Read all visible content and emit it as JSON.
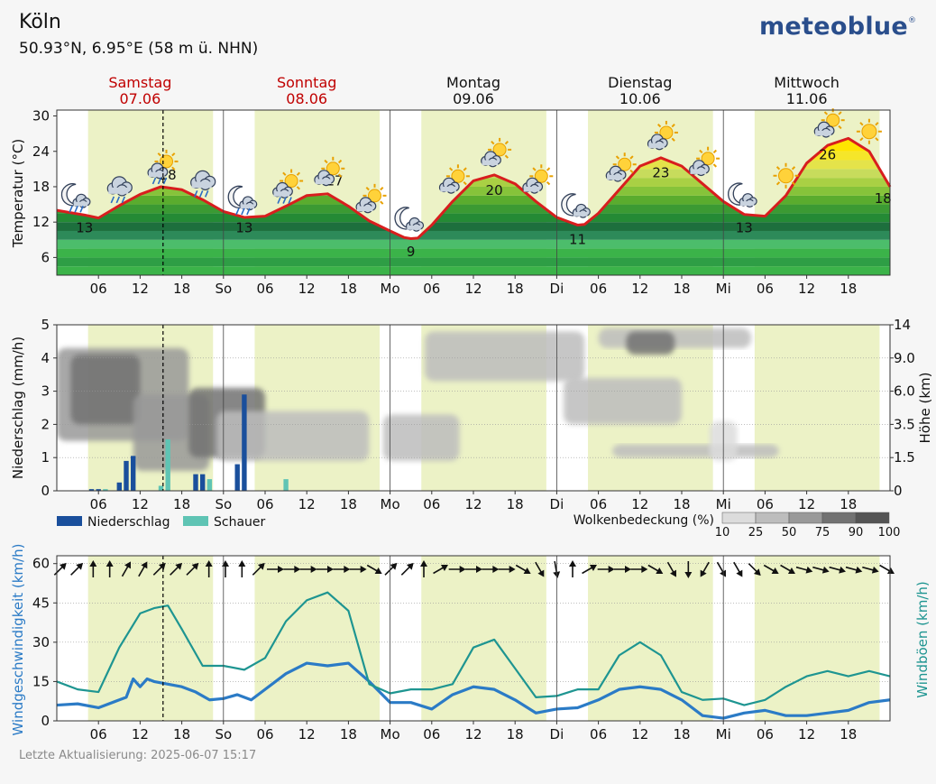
{
  "header": {
    "location": "Köln",
    "coordinates": "50.93°N, 6.95°E (58 m ü. NHN)",
    "brand": "meteoblue",
    "brand_mark": "®"
  },
  "footer": {
    "last_update": "Letzte Aktualisierung: 2025-06-07 15:17"
  },
  "colors": {
    "weekend_label": "#c00000",
    "weekday_label": "#111111",
    "daylight_band": "#ecf2c6",
    "temp_line": "#d81e1e",
    "precip": "#1a4f9c",
    "shower": "#5fc4b4",
    "wind": "#2b7bc6",
    "gusts": "#1e9591"
  },
  "days": [
    {
      "name": "Samstag",
      "date": "07.06",
      "weekend": true
    },
    {
      "name": "Sonntag",
      "date": "08.06",
      "weekend": true
    },
    {
      "name": "Montag",
      "date": "09.06",
      "weekend": false
    },
    {
      "name": "Dienstag",
      "date": "10.06",
      "weekend": false
    },
    {
      "name": "Mittwoch",
      "date": "11.06",
      "weekend": false
    }
  ],
  "chart_data": [
    {
      "type": "area",
      "id": "temperature",
      "ylabel": "Temperatur (°C)",
      "yticks": [
        6,
        12,
        18,
        24,
        30
      ],
      "ylim": [
        3,
        31
      ],
      "xlim_hours": [
        0,
        120
      ],
      "x_tick_labels": [
        "06",
        "12",
        "18",
        "So",
        "06",
        "12",
        "18",
        "Mo",
        "06",
        "12",
        "18",
        "Di",
        "06",
        "12",
        "18",
        "Mi",
        "06",
        "12",
        "18"
      ],
      "current_time_hour": 15.3,
      "daylight_hours": [
        [
          4.5,
          22.5
        ]
      ],
      "series": [
        {
          "name": "Temperatur",
          "x": [
            0,
            4,
            6,
            9,
            12,
            15,
            18,
            21,
            24,
            27,
            30,
            33,
            36,
            39,
            42,
            45,
            48,
            50,
            51,
            52,
            54,
            57,
            60,
            63,
            66,
            69,
            72,
            75,
            76,
            78,
            81,
            84,
            87,
            90,
            93,
            96,
            99,
            102,
            105,
            108,
            111,
            114,
            117,
            120
          ],
          "values": [
            14,
            13.2,
            12.7,
            14.8,
            16.7,
            18,
            17.5,
            15.8,
            13.8,
            12.8,
            13,
            14.7,
            16.5,
            16.8,
            14.7,
            12.2,
            10.5,
            9.4,
            9.2,
            9.3,
            11.5,
            15.5,
            19,
            20,
            18.5,
            15.5,
            12.8,
            11.5,
            11.6,
            13.5,
            17.5,
            21.5,
            22.9,
            21.5,
            18.5,
            15.5,
            13.3,
            13,
            16.5,
            22,
            25,
            26.2,
            24,
            18
          ]
        }
      ],
      "labels": [
        {
          "hour": 4,
          "text": "13",
          "value": 13
        },
        {
          "hour": 16,
          "text": "18",
          "value": 18
        },
        {
          "hour": 27,
          "text": "13",
          "value": 13
        },
        {
          "hour": 40,
          "text": "17",
          "value": 17
        },
        {
          "hour": 51,
          "text": "9",
          "value": 9
        },
        {
          "hour": 63,
          "text": "20",
          "value": 20
        },
        {
          "hour": 75,
          "text": "11",
          "value": 11
        },
        {
          "hour": 87,
          "text": "23",
          "value": 23
        },
        {
          "hour": 99,
          "text": "13",
          "value": 13
        },
        {
          "hour": 111,
          "text": "26",
          "value": 26
        },
        {
          "hour": 119,
          "text": "18",
          "value": 18
        }
      ],
      "weather_icons": [
        {
          "hour": 3,
          "icon": "moon-cloud-rain-icon"
        },
        {
          "hour": 9,
          "icon": "cloud-rain-icon"
        },
        {
          "hour": 15,
          "icon": "sun-cloud-rain-icon"
        },
        {
          "hour": 21,
          "icon": "cloud-rain-icon"
        },
        {
          "hour": 27,
          "icon": "moon-cloud-rain-icon"
        },
        {
          "hour": 33,
          "icon": "sun-cloud-rain-icon"
        },
        {
          "hour": 39,
          "icon": "sun-cloud-icon"
        },
        {
          "hour": 45,
          "icon": "sun-cloud-icon"
        },
        {
          "hour": 51,
          "icon": "moon-cloud-icon"
        },
        {
          "hour": 57,
          "icon": "sun-cloud-icon"
        },
        {
          "hour": 63,
          "icon": "sun-cloud-icon"
        },
        {
          "hour": 69,
          "icon": "sun-cloud-icon"
        },
        {
          "hour": 75,
          "icon": "moon-cloud-icon"
        },
        {
          "hour": 81,
          "icon": "sun-cloud-icon"
        },
        {
          "hour": 87,
          "icon": "sun-cloud-icon"
        },
        {
          "hour": 93,
          "icon": "sun-cloud-icon"
        },
        {
          "hour": 99,
          "icon": "moon-cloud-icon"
        },
        {
          "hour": 105,
          "icon": "sun-icon"
        },
        {
          "hour": 111,
          "icon": "sun-cloud-icon"
        },
        {
          "hour": 117,
          "icon": "sun-icon"
        }
      ]
    },
    {
      "type": "bar",
      "id": "precipitation",
      "ylabel": "Niederschlag (mm/h)",
      "y2label": "Höhe (km)",
      "yticks": [
        0,
        1,
        2,
        3,
        4,
        5
      ],
      "ylim": [
        0,
        5
      ],
      "y2_tick_labels": [
        "0",
        "1.5",
        "3.5",
        "6.0",
        "9.0",
        "14"
      ],
      "legend": [
        {
          "name": "Niederschlag",
          "color": "#1a4f9c"
        },
        {
          "name": "Schauer",
          "color": "#5fc4b4"
        }
      ],
      "cloud_legend": {
        "title": "Wolkenbedeckung (%)",
        "ticks": [
          "10",
          "25",
          "50",
          "75",
          "90",
          "100"
        ]
      },
      "series": [
        {
          "name": "Niederschlag",
          "hours": [
            5,
            6,
            9,
            10,
            11,
            20,
            21,
            26,
            27
          ],
          "values": [
            0.05,
            0.05,
            0.25,
            0.9,
            1.05,
            0.5,
            0.5,
            0.8,
            2.9
          ]
        },
        {
          "name": "Schauer",
          "hours": [
            7,
            15,
            16,
            22,
            33
          ],
          "values": [
            0.05,
            0.15,
            1.55,
            0.35,
            0.35
          ]
        }
      ],
      "cloud_layers": [
        {
          "x0": 0,
          "x1": 19,
          "lo": 1.5,
          "hi": 4.3,
          "level": 50
        },
        {
          "x0": 2,
          "x1": 12,
          "lo": 2.0,
          "hi": 4.1,
          "level": 75
        },
        {
          "x0": 11,
          "x1": 22,
          "lo": 0.6,
          "hi": 2.9,
          "level": 50
        },
        {
          "x0": 19,
          "x1": 30,
          "lo": 1.0,
          "hi": 3.1,
          "level": 75
        },
        {
          "x0": 23,
          "x1": 45,
          "lo": 0.9,
          "hi": 2.4,
          "level": 25
        },
        {
          "x0": 47,
          "x1": 58,
          "lo": 0.9,
          "hi": 2.3,
          "level": 25
        },
        {
          "x0": 53,
          "x1": 76,
          "lo": 3.3,
          "hi": 4.8,
          "level": 25
        },
        {
          "x0": 73,
          "x1": 90,
          "lo": 2.0,
          "hi": 3.4,
          "level": 25
        },
        {
          "x0": 78,
          "x1": 100,
          "lo": 4.3,
          "hi": 4.9,
          "level": 25
        },
        {
          "x0": 82,
          "x1": 89,
          "lo": 4.1,
          "hi": 4.8,
          "level": 75
        },
        {
          "x0": 80,
          "x1": 104,
          "lo": 1.0,
          "hi": 1.4,
          "level": 25
        },
        {
          "x0": 94,
          "x1": 98,
          "lo": 0.9,
          "hi": 2.1,
          "level": 10
        }
      ]
    },
    {
      "type": "line",
      "id": "wind",
      "ylabel": "Windgeschwindigkeit (km/h)",
      "y2label": "Windböen (km/h)",
      "yticks": [
        0,
        15,
        30,
        45,
        60
      ],
      "ylim": [
        0,
        60
      ],
      "series": [
        {
          "name": "Windgeschwindigkeit",
          "x": [
            0,
            3,
            6,
            9,
            10,
            11,
            12,
            13,
            14,
            16,
            18,
            20,
            22,
            24,
            26,
            28,
            30,
            33,
            36,
            39,
            42,
            45,
            48,
            51,
            54,
            57,
            60,
            63,
            66,
            69,
            72,
            75,
            78,
            81,
            84,
            87,
            90,
            93,
            96,
            99,
            102,
            105,
            108,
            111,
            114,
            117,
            120
          ],
          "values": [
            6,
            6.5,
            5,
            8,
            9,
            16,
            13,
            16,
            15,
            14,
            13,
            11,
            8,
            8.5,
            10,
            8,
            12,
            18,
            22,
            21,
            22,
            15,
            7,
            7,
            4.5,
            10,
            13,
            12,
            8,
            3,
            4.5,
            5,
            8,
            12,
            13,
            12,
            8,
            2,
            1,
            3,
            4,
            2,
            2,
            3,
            4,
            7,
            8
          ]
        },
        {
          "name": "Windböen",
          "x": [
            0,
            3,
            6,
            9,
            12,
            14,
            16,
            18,
            21,
            24,
            27,
            30,
            33,
            36,
            39,
            42,
            45,
            48,
            51,
            54,
            57,
            60,
            63,
            66,
            69,
            72,
            75,
            78,
            81,
            84,
            87,
            90,
            93,
            96,
            99,
            102,
            105,
            108,
            111,
            114,
            117,
            120
          ],
          "values": [
            15,
            12,
            11,
            28,
            41,
            43,
            44,
            35,
            21,
            21,
            19.5,
            24,
            38,
            46,
            49,
            42,
            14,
            10.5,
            12,
            12,
            14,
            28,
            31,
            20,
            9,
            9.5,
            12,
            12,
            25,
            30,
            25,
            11,
            8,
            8.5,
            6,
            8,
            13,
            17,
            19,
            17,
            19,
            17
          ]
        }
      ],
      "wind_direction_deg": [
        225,
        225,
        180,
        180,
        210,
        210,
        225,
        225,
        225,
        180,
        180,
        180,
        225,
        270,
        270,
        270,
        270,
        270,
        270,
        300,
        225,
        225,
        180,
        240,
        270,
        270,
        270,
        270,
        300,
        330,
        350,
        180,
        240,
        270,
        270,
        270,
        300,
        330,
        0,
        30,
        330,
        330,
        315,
        300,
        300,
        285,
        285,
        285,
        285,
        285,
        300
      ]
    }
  ]
}
